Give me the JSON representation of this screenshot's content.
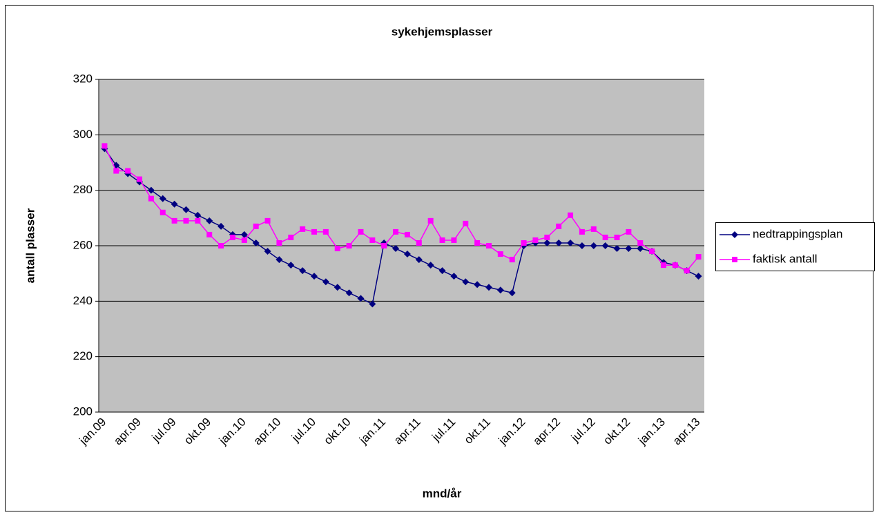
{
  "chart_data": {
    "type": "line",
    "title": "sykehjemsplasser",
    "x_label": "mnd/år",
    "y_label": "antall plasser",
    "categories": [
      "jan.09",
      null,
      null,
      "apr.09",
      null,
      null,
      "jul.09",
      null,
      null,
      "okt.09",
      null,
      null,
      "jan.10",
      null,
      null,
      "apr.10",
      null,
      null,
      "jul.10",
      null,
      null,
      "okt.10",
      null,
      null,
      "jan.11",
      null,
      null,
      "apr.11",
      null,
      null,
      "jul.11",
      null,
      null,
      "okt.11",
      null,
      null,
      "jan.12",
      null,
      null,
      "apr.12",
      null,
      null,
      "jul.12",
      null,
      null,
      "okt.12",
      null,
      null,
      "jan.13",
      null,
      null,
      "apr.13"
    ],
    "series": [
      {
        "name": "nedtrappingsplan",
        "color": "#000080",
        "marker": "diamond",
        "values": [
          295,
          289,
          286,
          283,
          280,
          277,
          275,
          273,
          271,
          269,
          267,
          264,
          264,
          261,
          258,
          255,
          253,
          251,
          249,
          247,
          245,
          243,
          241,
          239,
          261,
          259,
          257,
          255,
          253,
          251,
          249,
          247,
          246,
          245,
          244,
          243,
          260,
          261,
          261,
          261,
          261,
          260,
          260,
          260,
          259,
          259,
          259,
          258,
          254,
          253,
          251,
          249
        ]
      },
      {
        "name": "faktisk antall",
        "color": "#ff00ff",
        "marker": "square",
        "values": [
          296,
          287,
          287,
          284,
          277,
          272,
          269,
          269,
          269,
          264,
          260,
          263,
          262,
          267,
          269,
          261,
          263,
          266,
          265,
          265,
          259,
          260,
          265,
          262,
          260,
          265,
          264,
          261,
          269,
          262,
          262,
          268,
          261,
          260,
          257,
          255,
          261,
          262,
          263,
          267,
          271,
          265,
          266,
          263,
          263,
          265,
          261,
          258,
          253,
          253,
          251,
          256
        ]
      }
    ],
    "ylim": [
      200,
      320
    ],
    "yticks": [
      200,
      220,
      240,
      260,
      280,
      300,
      320
    ],
    "grid": true,
    "plot_background": "#c0c0c0",
    "legend": "right"
  }
}
